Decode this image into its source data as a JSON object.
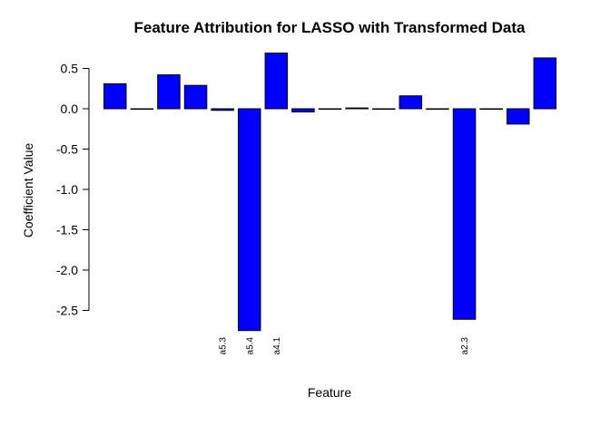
{
  "chart_data": {
    "type": "bar",
    "title": "Feature Attribution for LASSO with Transformed Data",
    "xlabel": "Feature",
    "ylabel": "Coefficient Value",
    "ylim": [
      -2.5,
      0.5
    ],
    "yticks": [
      0.5,
      0.0,
      -0.5,
      -1.0,
      -1.5,
      -2.0,
      -2.5
    ],
    "ytick_labels": [
      "0.5",
      "0.0",
      "-0.5",
      "-1.0",
      "-1.5",
      "-2.0",
      "-2.5"
    ],
    "categories": [
      "",
      "",
      "",
      "",
      "a5.3",
      "a5.4",
      "a4.1",
      "",
      "",
      "",
      "",
      "",
      "",
      "a2.3",
      "",
      "",
      ""
    ],
    "values": [
      0.31,
      0.0,
      0.42,
      0.29,
      -0.02,
      -2.75,
      0.69,
      -0.04,
      0.0,
      0.01,
      0.0,
      0.16,
      0.0,
      -2.61,
      0.0,
      -0.19,
      0.63
    ],
    "bar_color": "#0000ff",
    "bar_border": "#000000",
    "grid": false,
    "legend": "none"
  }
}
